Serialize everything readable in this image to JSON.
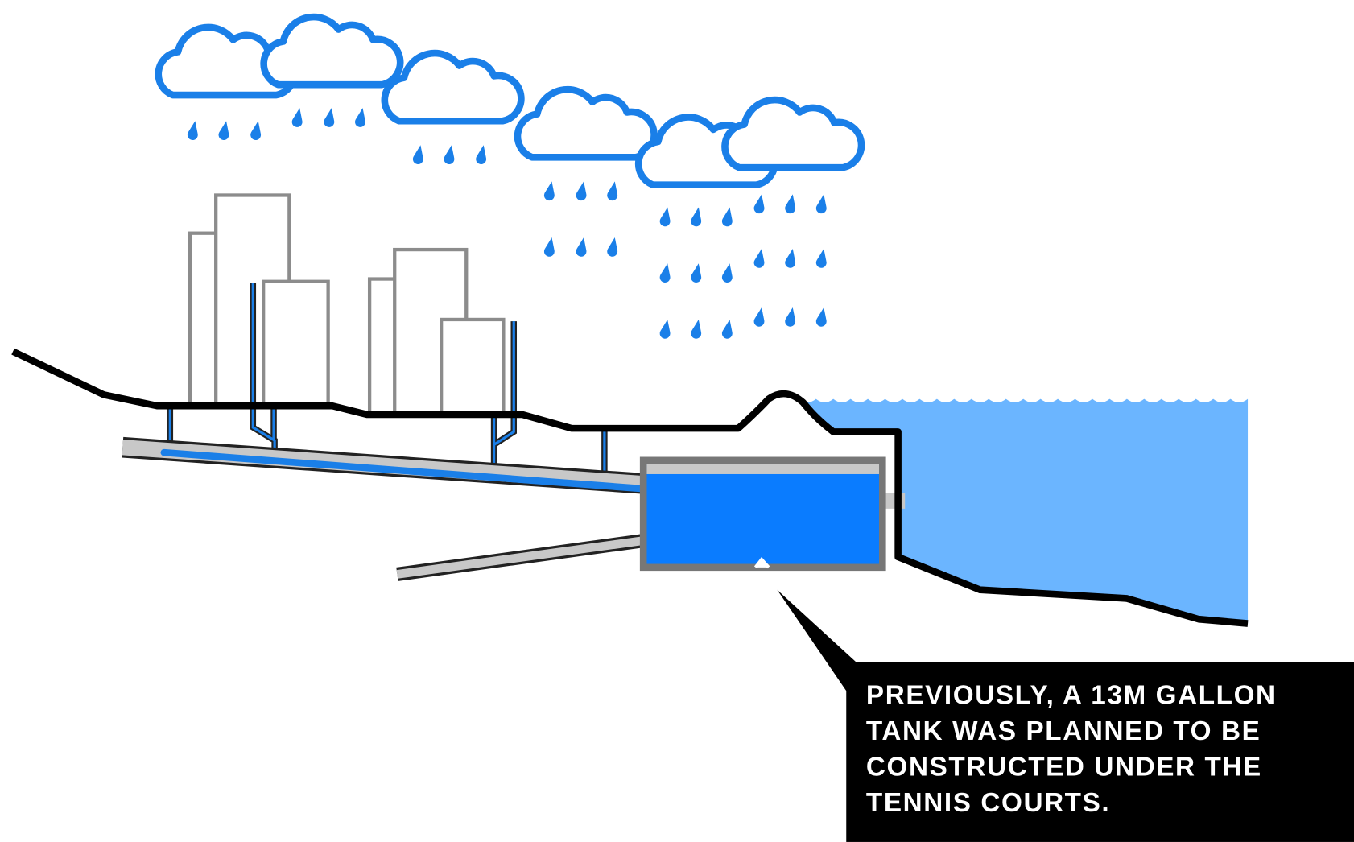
{
  "callout": {
    "lines": [
      "PREVIOUSLY, A 13M GALLON",
      "TANK WAS PLANNED TO BE",
      "CONSTRUCTED UNDER THE",
      "TENNIS COURTS."
    ]
  }
}
